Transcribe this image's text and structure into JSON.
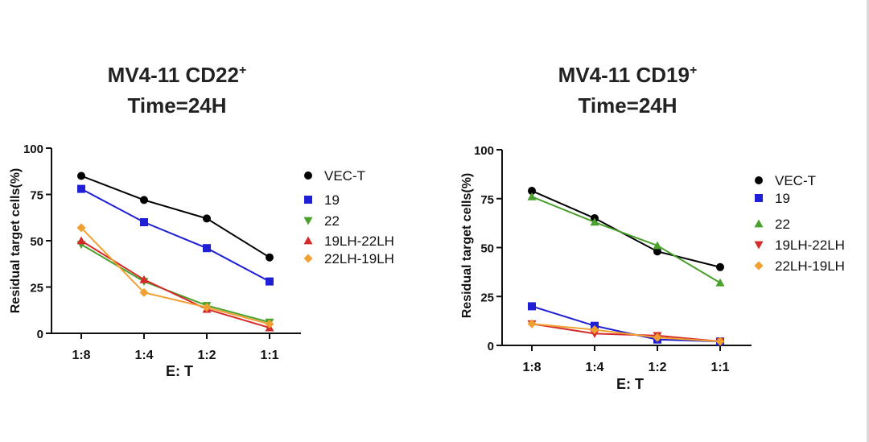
{
  "chart_data": [
    {
      "type": "line",
      "title": "MV4-11 CD22",
      "title_superscript": "+",
      "subtitle": "Time=24H",
      "xlabel": "E:  T",
      "ylabel": "Residual target cells(%)",
      "categories": [
        "1:8",
        "1:4",
        "1:2",
        "1:1"
      ],
      "ylim": [
        0,
        100
      ],
      "yticks": [
        0,
        25,
        50,
        75,
        100
      ],
      "legend_position": "right",
      "series": [
        {
          "name": "VEC-T",
          "marker": "circle",
          "color": "#000000",
          "values": [
            85,
            72,
            62,
            41
          ]
        },
        {
          "name": "19",
          "marker": "square",
          "color": "#1f1fd6",
          "values": [
            78,
            60,
            46,
            28
          ]
        },
        {
          "name": "22",
          "marker": "triangle-down",
          "color": "#4aa02c",
          "values": [
            48,
            28,
            15,
            6
          ]
        },
        {
          "name": "19LH-22LH",
          "marker": "triangle-up",
          "color": "#d42a2a",
          "values": [
            50,
            29,
            13,
            3
          ]
        },
        {
          "name": "22LH-19LH",
          "marker": "diamond",
          "color": "#f0a030",
          "values": [
            57,
            22,
            14,
            5
          ]
        }
      ]
    },
    {
      "type": "line",
      "title": "MV4-11 CD19",
      "title_superscript": "+",
      "subtitle": "Time=24H",
      "xlabel": "E:  T",
      "ylabel": "Residual target cells(%)",
      "categories": [
        "1:8",
        "1:4",
        "1:2",
        "1:1"
      ],
      "ylim": [
        0,
        100
      ],
      "yticks": [
        0,
        25,
        50,
        75,
        100
      ],
      "legend_position": "right",
      "series": [
        {
          "name": "VEC-T",
          "marker": "circle",
          "color": "#000000",
          "values": [
            79,
            65,
            48,
            40
          ]
        },
        {
          "name": "19",
          "marker": "square",
          "color": "#1f1fd6",
          "values": [
            20,
            10,
            3,
            2
          ]
        },
        {
          "name": "22",
          "marker": "triangle-up",
          "color": "#4aa02c",
          "values": [
            76,
            63,
            51,
            32
          ]
        },
        {
          "name": "19LH-22LH",
          "marker": "triangle-down",
          "color": "#d42a2a",
          "values": [
            11,
            6,
            5,
            2
          ]
        },
        {
          "name": "22LH-19LH",
          "marker": "diamond",
          "color": "#f0a030",
          "values": [
            11,
            8,
            4,
            2
          ]
        }
      ]
    }
  ]
}
